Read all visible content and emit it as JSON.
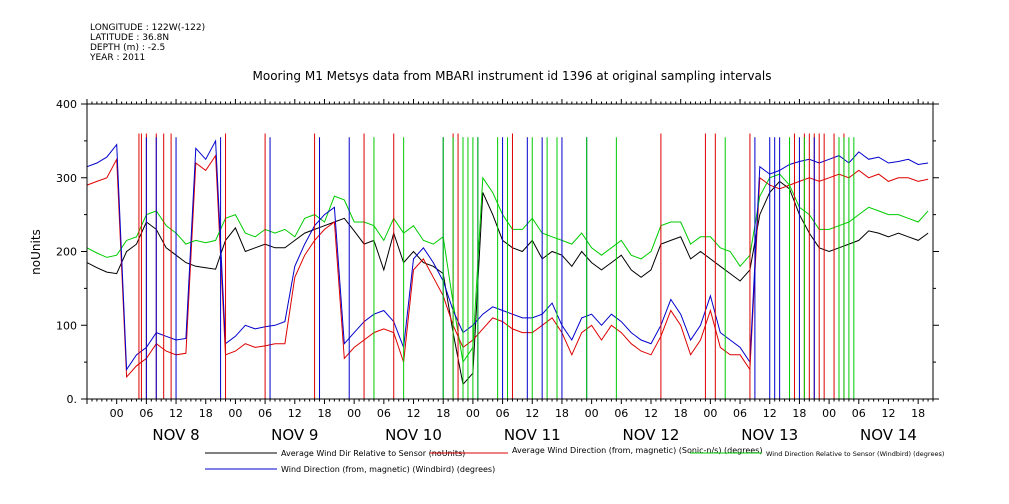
{
  "meta_lines": [
    "LONGITUDE : 122W(-122)",
    "LATITUDE : 36.8N",
    "DEPTH (m) : -2.5",
    "YEAR : 2011"
  ],
  "chart_data": {
    "type": "line",
    "title": "Mooring M1 Metsys data from MBARI instrument id 1396 at original sampling intervals",
    "ylabel": "noUnits",
    "xlabel": "",
    "ylim": [
      0,
      400
    ],
    "yticks": [
      0,
      100,
      200,
      300,
      400
    ],
    "ytick_labels": [
      "0.",
      "100",
      "200",
      "300",
      "400"
    ],
    "xlim_hours": [
      -6,
      165
    ],
    "hour_tick_labels": [
      "00",
      "06",
      "12",
      "18",
      "00",
      "06",
      "12",
      "18",
      "00",
      "06",
      "12",
      "18",
      "00",
      "06",
      "12",
      "18",
      "00",
      "06",
      "12",
      "18",
      "00",
      "06",
      "12",
      "18",
      "00",
      "06",
      "12",
      "18"
    ],
    "day_labels": [
      "NOV  8",
      "NOV  9",
      "NOV 10",
      "NOV 11",
      "NOV 12",
      "NOV 13",
      "NOV 14"
    ],
    "grid": false,
    "legend_placement": "bottom",
    "series": [
      {
        "name": "Average Wind Dir Relative to Sensor (noUnits)",
        "color": "#000000",
        "x": [
          -6,
          -4,
          -2,
          0,
          2,
          4,
          6,
          8,
          10,
          12,
          14,
          16,
          18,
          20,
          22,
          24,
          26,
          28,
          30,
          32,
          34,
          36,
          38,
          40,
          42,
          44,
          46,
          48,
          50,
          52,
          54,
          56,
          58,
          60,
          62,
          64,
          66,
          68,
          70,
          72,
          74,
          76,
          78,
          80,
          82,
          84,
          86,
          88,
          90,
          92,
          94,
          96,
          98,
          100,
          102,
          104,
          106,
          108,
          110,
          112,
          114,
          116,
          118,
          120,
          122,
          124,
          126,
          128,
          130,
          132,
          134,
          136,
          138,
          140,
          142,
          144,
          146,
          148,
          150,
          152,
          154,
          156,
          158,
          160,
          162,
          164
        ],
        "y": [
          185,
          178,
          172,
          170,
          200,
          210,
          240,
          230,
          205,
          195,
          185,
          180,
          178,
          176,
          215,
          232,
          200,
          205,
          210,
          205,
          205,
          215,
          225,
          230,
          235,
          240,
          245,
          228,
          210,
          215,
          175,
          225,
          185,
          200,
          185,
          180,
          170,
          90,
          20,
          35,
          280,
          250,
          215,
          205,
          200,
          215,
          190,
          200,
          195,
          180,
          200,
          185,
          175,
          185,
          195,
          175,
          165,
          175,
          210,
          215,
          220,
          190,
          200,
          190,
          180,
          170,
          160,
          175,
          250,
          280,
          295,
          285,
          250,
          225,
          205,
          200,
          205,
          210,
          215,
          228,
          225,
          220,
          225,
          220,
          215,
          225
        ]
      },
      {
        "name": "Average Wind Direction (from, magnetic) (Sonic-n/s) (degrees)",
        "color": "#dd0000",
        "x": [
          -6,
          -4,
          -2,
          0,
          2,
          4,
          6,
          8,
          10,
          12,
          14,
          16,
          18,
          20,
          22,
          24,
          26,
          28,
          30,
          32,
          34,
          36,
          38,
          40,
          42,
          44,
          46,
          48,
          50,
          52,
          54,
          56,
          58,
          60,
          62,
          64,
          66,
          68,
          70,
          72,
          74,
          76,
          78,
          80,
          82,
          84,
          86,
          88,
          90,
          92,
          94,
          96,
          98,
          100,
          102,
          104,
          106,
          108,
          110,
          112,
          114,
          116,
          118,
          120,
          122,
          124,
          126,
          128,
          130,
          132,
          134,
          136,
          138,
          140,
          142,
          144,
          146,
          148,
          150,
          152,
          154,
          156,
          158,
          160,
          162,
          164
        ],
        "y": [
          290,
          295,
          300,
          325,
          30,
          45,
          55,
          75,
          65,
          60,
          62,
          320,
          310,
          330,
          60,
          65,
          75,
          70,
          72,
          75,
          75,
          165,
          195,
          215,
          230,
          240,
          55,
          70,
          80,
          90,
          95,
          90,
          50,
          175,
          190,
          165,
          140,
          100,
          70,
          80,
          95,
          110,
          105,
          95,
          90,
          90,
          100,
          110,
          90,
          60,
          90,
          100,
          80,
          100,
          90,
          75,
          65,
          60,
          85,
          120,
          100,
          60,
          80,
          120,
          70,
          60,
          60,
          40,
          300,
          290,
          285,
          290,
          295,
          300,
          295,
          300,
          305,
          300,
          310,
          300,
          305,
          295,
          300,
          300,
          295,
          298
        ]
      },
      {
        "name": "Wind Direction Relative to Sensor (Windbird) (degrees)",
        "color": "#00cc00",
        "x": [
          -6,
          -4,
          -2,
          0,
          2,
          4,
          6,
          8,
          10,
          12,
          14,
          16,
          18,
          20,
          22,
          24,
          26,
          28,
          30,
          32,
          34,
          36,
          38,
          40,
          42,
          44,
          46,
          48,
          50,
          52,
          54,
          56,
          58,
          60,
          62,
          64,
          66,
          68,
          70,
          72,
          74,
          76,
          78,
          80,
          82,
          84,
          86,
          88,
          90,
          92,
          94,
          96,
          98,
          100,
          102,
          104,
          106,
          108,
          110,
          112,
          114,
          116,
          118,
          120,
          122,
          124,
          126,
          128,
          130,
          132,
          134,
          136,
          138,
          140,
          142,
          144,
          146,
          148,
          150,
          152,
          154,
          156,
          158,
          160,
          162,
          164
        ],
        "y": [
          205,
          198,
          192,
          195,
          215,
          220,
          250,
          255,
          235,
          225,
          210,
          215,
          212,
          215,
          245,
          250,
          225,
          220,
          230,
          225,
          230,
          220,
          245,
          250,
          240,
          275,
          270,
          240,
          240,
          235,
          215,
          245,
          225,
          235,
          215,
          210,
          220,
          130,
          50,
          70,
          300,
          280,
          250,
          230,
          230,
          245,
          225,
          220,
          215,
          210,
          225,
          205,
          195,
          205,
          215,
          195,
          190,
          200,
          235,
          240,
          240,
          210,
          220,
          220,
          205,
          200,
          180,
          195,
          275,
          300,
          305,
          290,
          260,
          250,
          230,
          230,
          235,
          240,
          250,
          260,
          255,
          250,
          250,
          245,
          240,
          255
        ]
      },
      {
        "name": "Wind Direction (from, magnetic) (Windbird) (degrees)",
        "color": "#0000cc",
        "x": [
          -6,
          -4,
          -2,
          0,
          2,
          4,
          6,
          8,
          10,
          12,
          14,
          16,
          18,
          20,
          22,
          24,
          26,
          28,
          30,
          32,
          34,
          36,
          38,
          40,
          42,
          44,
          46,
          48,
          50,
          52,
          54,
          56,
          58,
          60,
          62,
          64,
          66,
          68,
          70,
          72,
          74,
          76,
          78,
          80,
          82,
          84,
          86,
          88,
          90,
          92,
          94,
          96,
          98,
          100,
          102,
          104,
          106,
          108,
          110,
          112,
          114,
          116,
          118,
          120,
          122,
          124,
          126,
          128,
          130,
          132,
          134,
          136,
          138,
          140,
          142,
          144,
          146,
          148,
          150,
          152,
          154,
          156,
          158,
          160,
          162,
          164
        ],
        "y": [
          315,
          320,
          328,
          345,
          40,
          60,
          70,
          90,
          85,
          80,
          82,
          340,
          325,
          350,
          75,
          85,
          100,
          95,
          98,
          100,
          105,
          180,
          210,
          235,
          250,
          260,
          75,
          90,
          105,
          115,
          120,
          105,
          70,
          190,
          205,
          185,
          160,
          120,
          90,
          100,
          115,
          125,
          120,
          115,
          110,
          110,
          115,
          130,
          100,
          80,
          110,
          115,
          100,
          115,
          105,
          90,
          80,
          75,
          100,
          135,
          115,
          80,
          100,
          140,
          90,
          80,
          70,
          50,
          315,
          305,
          310,
          318,
          322,
          325,
          320,
          325,
          330,
          320,
          335,
          325,
          328,
          320,
          322,
          325,
          318,
          320
        ]
      }
    ],
    "spikes": [
      {
        "series": 1,
        "x": [
          4.5,
          5,
          6,
          8,
          9.5,
          11,
          22,
          30,
          40,
          50,
          56,
          68,
          69,
          80,
          110,
          119,
          121,
          128,
          137,
          139,
          140,
          141,
          142,
          143,
          145,
          147
        ],
        "low": 0,
        "high": 360
      },
      {
        "series": 3,
        "x": [
          6,
          8,
          12,
          21,
          31,
          41,
          47,
          66,
          70,
          73,
          78,
          83,
          86,
          90,
          95,
          129,
          132,
          133,
          134,
          138,
          141,
          146
        ],
        "low": 0,
        "high": 355
      },
      {
        "series": 2,
        "x": [
          52,
          58,
          66,
          68,
          70,
          71,
          72,
          73,
          77,
          79,
          84,
          87,
          89,
          95,
          101,
          123,
          136,
          139,
          146,
          147,
          148,
          149
        ],
        "low": 0,
        "high": 355
      }
    ]
  }
}
